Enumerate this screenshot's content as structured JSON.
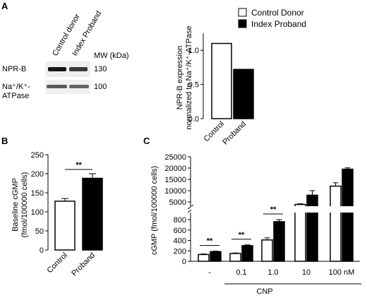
{
  "panel_labels": {
    "a": "A",
    "b": "B",
    "c": "C"
  },
  "blot": {
    "lanes": [
      "Control donor",
      "Index Proband"
    ],
    "mw_header": "MW (kDa)",
    "rows": [
      {
        "label": "NPR-B",
        "mw": "130"
      },
      {
        "label_line1": "Na⁺/K⁺-",
        "label_line2": "ATPase",
        "mw": "100"
      }
    ]
  },
  "legend": {
    "items": [
      {
        "label": "Control Donor",
        "color": "#ffffff"
      },
      {
        "label": "Index Proband",
        "color": "#000000"
      }
    ]
  },
  "chart_data": [
    {
      "panel": "A",
      "type": "bar",
      "categories": [
        "Control",
        "Proband"
      ],
      "values": [
        1.1,
        0.72
      ],
      "colors": [
        "#ffffff",
        "#000000"
      ],
      "ylabel_line1": "NPR-B expression",
      "ylabel_line2": "normalized to Na⁺/K⁺-ATPase",
      "ylim": [
        0,
        1.25
      ],
      "yticks": [
        "0.0",
        "0.5",
        "1.0"
      ],
      "ytick_values": [
        0,
        0.5,
        1.0
      ]
    },
    {
      "panel": "B",
      "type": "bar",
      "categories": [
        "Control",
        "Proband"
      ],
      "values": [
        128,
        188
      ],
      "errors": [
        7,
        12
      ],
      "colors": [
        "#ffffff",
        "#000000"
      ],
      "ylabel_line1": "Baseline cGMP",
      "ylabel_line2": "(fmol/100000 cells)",
      "ylim": [
        0,
        250
      ],
      "yticks": [
        "0",
        "50",
        "100",
        "150",
        "200",
        "250"
      ],
      "ytick_values": [
        0,
        50,
        100,
        150,
        200,
        250
      ],
      "significance": "**"
    },
    {
      "panel": "C",
      "type": "bar",
      "categories": [
        "-",
        "0.1",
        "1.0",
        "10",
        "100 nM"
      ],
      "series": [
        {
          "name": "Control Donor",
          "values": [
            130,
            150,
            410,
            3900,
            12000
          ],
          "errors": [
            10,
            10,
            40,
            300,
            1500
          ]
        },
        {
          "name": "Index Proband",
          "values": [
            185,
            300,
            760,
            8000,
            19500
          ],
          "errors": [
            10,
            15,
            40,
            2000,
            600
          ]
        }
      ],
      "ylabel": "cGMP (fmol/100000 cells)",
      "xlabel": "CNP",
      "y_break": true,
      "lower_yticks": [
        "0",
        "200",
        "400",
        "600",
        "800"
      ],
      "lower_tick_values": [
        0,
        200,
        400,
        600,
        800
      ],
      "upper_yticks": [
        "5000",
        "10000",
        "15000",
        "20000",
        "25000"
      ],
      "upper_tick_values": [
        5000,
        10000,
        15000,
        20000,
        25000
      ],
      "significance": [
        {
          "category": "-",
          "label": "**"
        },
        {
          "category": "0.1",
          "label": "**"
        },
        {
          "category": "1.0",
          "label": "**"
        }
      ]
    }
  ]
}
